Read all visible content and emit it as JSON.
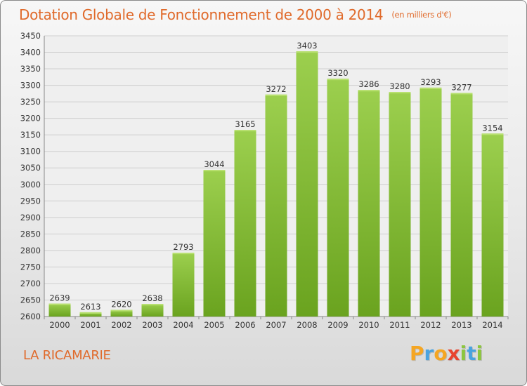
{
  "title": "Dotation Globale de Fonctionnement de 2000 à 2014",
  "unit_note": "(en milliers d'€)",
  "commune": "LA RICAMARIE",
  "logo": {
    "letters": [
      "P",
      "r",
      "o",
      "x",
      "i",
      "t",
      "i"
    ],
    "colors": [
      "#f5a623",
      "#4aa3df",
      "#f5a623",
      "#e8442e",
      "#8cc63f",
      "#4aa3df",
      "#8cc63f"
    ]
  },
  "colors": {
    "accent": "#e06a2b",
    "bar_top": "#9ccf4e",
    "bar_bottom": "#6aa31f",
    "grid": "#cfcfcf"
  },
  "chart_data": {
    "type": "bar",
    "categories": [
      "2000",
      "2001",
      "2002",
      "2003",
      "2004",
      "2005",
      "2006",
      "2007",
      "2008",
      "2009",
      "2010",
      "2011",
      "2012",
      "2013",
      "2014"
    ],
    "values": [
      2639,
      2613,
      2620,
      2638,
      2793,
      3044,
      3165,
      3272,
      3403,
      3320,
      3286,
      3280,
      3293,
      3277,
      3154
    ],
    "title": "Dotation Globale de Fonctionnement de 2000 à 2014",
    "xlabel": "",
    "ylabel": "",
    "ylim": [
      2600,
      3450
    ],
    "yticks": [
      2600,
      2650,
      2700,
      2750,
      2800,
      2850,
      2900,
      2950,
      3000,
      3050,
      3100,
      3150,
      3200,
      3250,
      3300,
      3350,
      3400,
      3450
    ],
    "grid": true,
    "data_labels": true
  }
}
